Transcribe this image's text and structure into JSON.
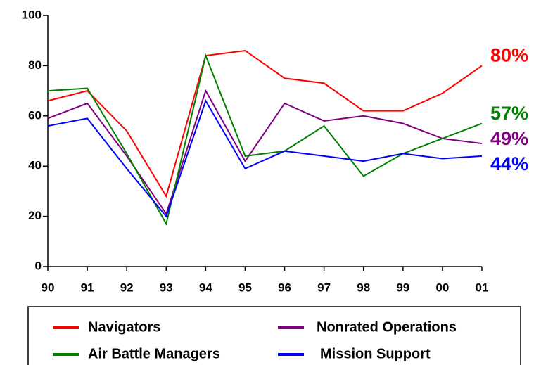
{
  "chart_data": {
    "type": "line",
    "categories": [
      "90",
      "91",
      "92",
      "93",
      "94",
      "95",
      "96",
      "97",
      "98",
      "99",
      "00",
      "01"
    ],
    "series": [
      {
        "name": "Navigators",
        "color": "#ff0000",
        "values": [
          66,
          70,
          54,
          28,
          84,
          86,
          75,
          73,
          62,
          62,
          69,
          80
        ],
        "value_labels": [
          null,
          null,
          null,
          null,
          null,
          null,
          null,
          null,
          null,
          null,
          null,
          "80%"
        ]
      },
      {
        "name": "Nonrated Operations",
        "color": "#800080",
        "values": [
          59,
          65,
          44,
          21,
          70,
          42,
          65,
          58,
          60,
          57,
          51,
          49
        ],
        "value_labels": [
          null,
          null,
          null,
          null,
          null,
          null,
          null,
          null,
          null,
          null,
          null,
          "49%"
        ]
      },
      {
        "name": "Air Battle Managers",
        "color": "#008000",
        "values": [
          70,
          71,
          45,
          17,
          84,
          44,
          46,
          56,
          36,
          45,
          51,
          57
        ],
        "value_labels": [
          null,
          null,
          null,
          null,
          null,
          null,
          null,
          null,
          null,
          null,
          null,
          "57%"
        ]
      },
      {
        "name": "Mission Support",
        "color": "#0000ff",
        "values": [
          56,
          59,
          39,
          20,
          66,
          39,
          46,
          44,
          42,
          45,
          43,
          44
        ],
        "value_labels": [
          null,
          null,
          null,
          null,
          null,
          null,
          null,
          null,
          null,
          null,
          null,
          "44%"
        ]
      }
    ],
    "ylim": [
      0,
      100
    ],
    "yticks": [
      0,
      20,
      40,
      60,
      80,
      100
    ],
    "legend": "bottom"
  }
}
